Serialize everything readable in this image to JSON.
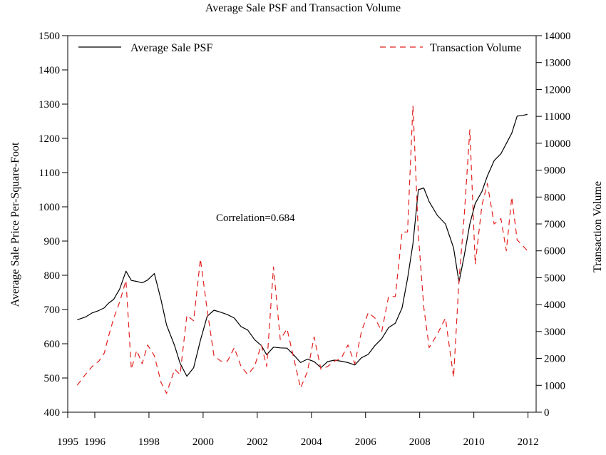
{
  "chart_data": {
    "type": "line",
    "title": "Average Sale PSF and Transaction Volume",
    "ylabel": "Average Sale Price Per-Square-Foot",
    "y2label": "Transaction Volume",
    "xlim": [
      1995.0,
      2012.3
    ],
    "ylim": [
      400,
      1500
    ],
    "y2lim": [
      0,
      14000
    ],
    "xticks": [
      1995,
      1996,
      1998,
      2000,
      2002,
      2004,
      2006,
      2008,
      2010,
      2012
    ],
    "yticks": [
      400,
      500,
      600,
      700,
      800,
      900,
      1000,
      1100,
      1200,
      1300,
      1400,
      1500
    ],
    "y2ticks": [
      0,
      1000,
      2000,
      3000,
      4000,
      5000,
      6000,
      7000,
      8000,
      9000,
      10000,
      11000,
      12000,
      13000,
      14000
    ],
    "legend_placement": "top",
    "annotation": "Correlation=0.684",
    "grid": false,
    "series": [
      {
        "name": "Average Sale PSF",
        "axis": "left",
        "color": "#000000",
        "style": "solid",
        "x": [
          1995.35,
          1995.65,
          1995.9,
          1996.15,
          1996.35,
          1996.5,
          1996.7,
          1996.92,
          1997.15,
          1997.35,
          1997.55,
          1997.75,
          1997.95,
          1998.2,
          1998.45,
          1998.65,
          1998.95,
          1999.15,
          1999.4,
          1999.65,
          1999.9,
          2000.15,
          2000.4,
          2000.65,
          2000.9,
          2001.15,
          2001.4,
          2001.65,
          2001.9,
          2002.15,
          2002.35,
          2002.6,
          2002.85,
          2003.1,
          2003.35,
          2003.6,
          2003.85,
          2004.1,
          2004.35,
          2004.6,
          2004.85,
          2005.1,
          2005.35,
          2005.6,
          2005.85,
          2006.1,
          2006.35,
          2006.6,
          2006.85,
          2007.1,
          2007.35,
          2007.55,
          2007.75,
          2007.95,
          2008.15,
          2008.35,
          2008.65,
          2008.95,
          2009.25,
          2009.45,
          2009.65,
          2009.85,
          2010.05,
          2010.3,
          2010.5,
          2010.75,
          2011.0,
          2011.2,
          2011.4,
          2011.6,
          2011.8,
          2011.98
        ],
        "values": [
          670,
          678,
          690,
          697,
          705,
          718,
          730,
          760,
          812,
          785,
          782,
          778,
          786,
          805,
          727,
          655,
          594,
          543,
          505,
          530,
          610,
          680,
          698,
          692,
          685,
          675,
          650,
          640,
          612,
          595,
          568,
          590,
          588,
          587,
          567,
          545,
          555,
          548,
          530,
          548,
          552,
          549,
          545,
          538,
          559,
          569,
          595,
          615,
          647,
          660,
          705,
          790,
          892,
          1050,
          1055,
          1015,
          975,
          950,
          880,
          780,
          860,
          950,
          1010,
          1045,
          1090,
          1135,
          1155,
          1185,
          1215,
          1265,
          1267,
          1270
        ]
      },
      {
        "name": "Transaction Volume",
        "axis": "right",
        "color": "#e1201e",
        "style": "dashed",
        "x": [
          1995.35,
          1995.65,
          1995.9,
          1996.15,
          1996.35,
          1996.5,
          1996.7,
          1996.92,
          1997.15,
          1997.35,
          1997.55,
          1997.75,
          1997.95,
          1998.2,
          1998.45,
          1998.65,
          1998.95,
          1999.15,
          1999.4,
          1999.65,
          1999.9,
          2000.15,
          2000.4,
          2000.65,
          2000.9,
          2001.15,
          2001.4,
          2001.65,
          2001.9,
          2002.15,
          2002.35,
          2002.6,
          2002.85,
          2003.1,
          2003.35,
          2003.6,
          2003.85,
          2004.1,
          2004.35,
          2004.6,
          2004.85,
          2005.1,
          2005.35,
          2005.6,
          2005.85,
          2006.1,
          2006.35,
          2006.6,
          2006.85,
          2007.1,
          2007.35,
          2007.55,
          2007.75,
          2007.95,
          2008.15,
          2008.35,
          2008.65,
          2008.95,
          2009.25,
          2009.45,
          2009.65,
          2009.85,
          2010.05,
          2010.3,
          2010.5,
          2010.75,
          2011.0,
          2011.2,
          2011.4,
          2011.6,
          2011.8,
          2011.98
        ],
        "values": [
          1000,
          1400,
          1700,
          1900,
          2200,
          2800,
          3500,
          4100,
          4900,
          1600,
          2300,
          1800,
          2500,
          2100,
          1100,
          700,
          1600,
          1400,
          3600,
          3400,
          5700,
          3800,
          2100,
          1900,
          1900,
          2400,
          1700,
          1400,
          1700,
          2500,
          1700,
          5400,
          2700,
          3100,
          2000,
          900,
          1500,
          2800,
          1600,
          1700,
          1900,
          2000,
          2500,
          1800,
          3000,
          3700,
          3500,
          3000,
          4300,
          4300,
          6700,
          6700,
          11400,
          6600,
          3900,
          2400,
          2900,
          3500,
          1300,
          4900,
          7400,
          10500,
          5500,
          7700,
          8500,
          7000,
          7200,
          6000,
          8000,
          6400,
          6200,
          6000
        ]
      }
    ]
  }
}
